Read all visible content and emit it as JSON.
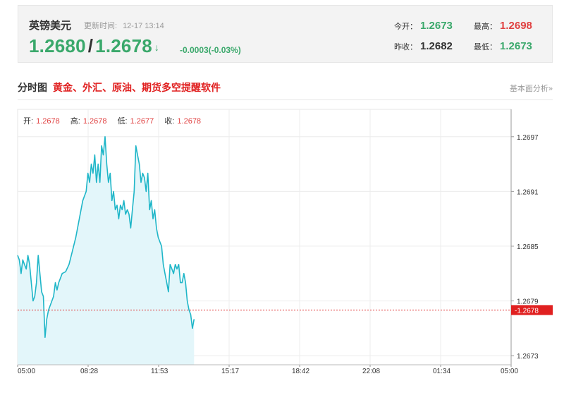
{
  "header": {
    "title": "英镑美元",
    "update_label": "更新时间:",
    "update_time": "12-17 13:14",
    "bid": "1.2680",
    "slash": "/",
    "ask": "1.2678",
    "arrow": "↓",
    "change": "-0.0003(-0.03%)",
    "open_label": "今开：",
    "open": "1.2673",
    "high_label": "最高：",
    "high": "1.2698",
    "prev_close_label": "昨收：",
    "prev_close": "1.2682",
    "low_label": "最低：",
    "low": "1.2673",
    "colors": {
      "up": "#e04040",
      "down": "#3aa86b"
    }
  },
  "section": {
    "title": "分时图",
    "promo_link": "黄金、外汇、原油、期货多空提醒软件",
    "right_link": "基本面分析»"
  },
  "ohlc": {
    "open_label": "开:",
    "open": "1.2678",
    "high_label": "高:",
    "high": "1.2678",
    "low_label": "低:",
    "low": "1.2677",
    "close_label": "收:",
    "close": "1.2678"
  },
  "chart_data": {
    "type": "area",
    "x_tick_labels": [
      "05:00",
      "08:28",
      "11:53",
      "15:17",
      "18:42",
      "22:08",
      "01:34",
      "05:00"
    ],
    "y_tick_labels": [
      "1.2697",
      "1.2691",
      "1.2685",
      "1.2679",
      "1.2673"
    ],
    "ylim": [
      1.2672,
      1.27
    ],
    "x_range_minutes": [
      0,
      1440
    ],
    "current_price_label": "1.2678",
    "current_price": 1.2678,
    "grid": true,
    "line_color": "#1fb6c8",
    "fill_color": "#e3f6fa",
    "series": [
      {
        "values": [
          [
            0,
            1.2684
          ],
          [
            5,
            1.26835
          ],
          [
            10,
            1.2682
          ],
          [
            15,
            1.26835
          ],
          [
            20,
            1.2683
          ],
          [
            25,
            1.26825
          ],
          [
            30,
            1.2684
          ],
          [
            35,
            1.2683
          ],
          [
            40,
            1.2681
          ],
          [
            45,
            1.2679
          ],
          [
            50,
            1.26795
          ],
          [
            55,
            1.2681
          ],
          [
            60,
            1.2684
          ],
          [
            65,
            1.2682
          ],
          [
            70,
            1.268
          ],
          [
            75,
            1.26795
          ],
          [
            80,
            1.2675
          ],
          [
            85,
            1.2677
          ],
          [
            90,
            1.2678
          ],
          [
            95,
            1.26785
          ],
          [
            100,
            1.2679
          ],
          [
            105,
            1.26795
          ],
          [
            110,
            1.2681
          ],
          [
            115,
            1.26802
          ],
          [
            120,
            1.2681
          ],
          [
            130,
            1.2682
          ],
          [
            140,
            1.26822
          ],
          [
            150,
            1.2683
          ],
          [
            160,
            1.26845
          ],
          [
            170,
            1.2686
          ],
          [
            180,
            1.2688
          ],
          [
            190,
            1.269
          ],
          [
            200,
            1.2691
          ],
          [
            205,
            1.2693
          ],
          [
            210,
            1.2692
          ],
          [
            215,
            1.2694
          ],
          [
            220,
            1.2693
          ],
          [
            225,
            1.2695
          ],
          [
            230,
            1.2692
          ],
          [
            235,
            1.2694
          ],
          [
            240,
            1.2692
          ],
          [
            245,
            1.2696
          ],
          [
            250,
            1.2695
          ],
          [
            255,
            1.2697
          ],
          [
            260,
            1.2694
          ],
          [
            265,
            1.2692
          ],
          [
            270,
            1.2693
          ],
          [
            275,
            1.269
          ],
          [
            280,
            1.2691
          ],
          [
            285,
            1.2689
          ],
          [
            290,
            1.26895
          ],
          [
            295,
            1.2688
          ],
          [
            300,
            1.26895
          ],
          [
            305,
            1.2689
          ],
          [
            310,
            1.269
          ],
          [
            315,
            1.26885
          ],
          [
            320,
            1.2689
          ],
          [
            325,
            1.26885
          ],
          [
            330,
            1.2687
          ],
          [
            335,
            1.2689
          ],
          [
            340,
            1.2691
          ],
          [
            345,
            1.2696
          ],
          [
            350,
            1.2695
          ],
          [
            355,
            1.2694
          ],
          [
            360,
            1.2692
          ],
          [
            365,
            1.2693
          ],
          [
            370,
            1.26925
          ],
          [
            375,
            1.2691
          ],
          [
            380,
            1.2693
          ],
          [
            385,
            1.2689
          ],
          [
            390,
            1.269
          ],
          [
            395,
            1.2688
          ],
          [
            400,
            1.2689
          ],
          [
            405,
            1.2687
          ],
          [
            410,
            1.2686
          ],
          [
            415,
            1.26855
          ],
          [
            420,
            1.2685
          ],
          [
            425,
            1.2683
          ],
          [
            430,
            1.2682
          ],
          [
            435,
            1.2681
          ],
          [
            440,
            1.268
          ],
          [
            445,
            1.2683
          ],
          [
            450,
            1.26825
          ],
          [
            455,
            1.2682
          ],
          [
            460,
            1.2683
          ],
          [
            465,
            1.26825
          ],
          [
            470,
            1.2683
          ],
          [
            475,
            1.2681
          ],
          [
            480,
            1.2681
          ],
          [
            485,
            1.2682
          ],
          [
            490,
            1.2681
          ],
          [
            495,
            1.2679
          ],
          [
            500,
            1.2678
          ],
          [
            505,
            1.26775
          ],
          [
            510,
            1.2676
          ],
          [
            515,
            1.2677
          ]
        ]
      }
    ]
  }
}
